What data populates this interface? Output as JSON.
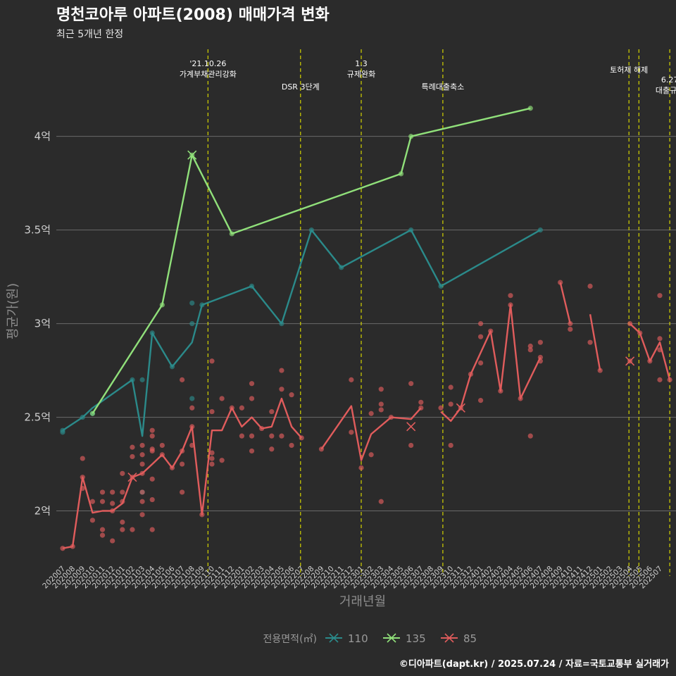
{
  "chart_data": {
    "type": "line",
    "title": "명천코아루 아파트(2008) 매매가격 변화",
    "subtitle": "최근 5개년 한정",
    "xlabel": "거래년월",
    "ylabel": "평균가(원)",
    "caption": "©디아파트(dapt.kr) / 2025.07.24 / 자료=국토교통부 실거래가",
    "ylim": [
      1.72,
      4.48
    ],
    "yticks": [
      {
        "v": 2,
        "label": "2억"
      },
      {
        "v": 2.5,
        "label": "2.5억"
      },
      {
        "v": 3,
        "label": "3억"
      },
      {
        "v": 3.5,
        "label": "3.5억"
      },
      {
        "v": 4,
        "label": "4억"
      }
    ],
    "months": [
      "202007",
      "202008",
      "202009",
      "202010",
      "202011",
      "202012",
      "202101",
      "202102",
      "202103",
      "202104",
      "202105",
      "202106",
      "202107",
      "202108",
      "202109",
      "202110",
      "202111",
      "202112",
      "202201",
      "202202",
      "202203",
      "202204",
      "202205",
      "202206",
      "202207",
      "202208",
      "202209",
      "202210",
      "202211",
      "202212",
      "202301",
      "202302",
      "202303",
      "202304",
      "202305",
      "202306",
      "202307",
      "202308",
      "202309",
      "202310",
      "202311",
      "202312",
      "202401",
      "202402",
      "202403",
      "202404",
      "202405",
      "202406",
      "202407",
      "202408",
      "202409",
      "202410",
      "202411",
      "202412",
      "202501",
      "202502",
      "202503",
      "202504",
      "202505",
      "202506",
      "202507"
    ],
    "legend": {
      "title": "전용면적(㎡)",
      "placement": "bottom"
    },
    "events": [
      {
        "x": 14.6,
        "lines": [
          "'21.10.26",
          "가계부채관리강화"
        ],
        "y": 94
      },
      {
        "x": 23.9,
        "lines": [
          "DSR 3단계"
        ],
        "y": 127
      },
      {
        "x": 30.0,
        "lines": [
          "1.3",
          "규제완화"
        ],
        "y": 94
      },
      {
        "x": 38.2,
        "lines": [
          "특례대출축소"
        ],
        "y": 127
      },
      {
        "x": 56.9,
        "lines": [
          "토허제 해제"
        ],
        "y": 103
      },
      {
        "x": 57.9,
        "lines": [],
        "y": 103
      },
      {
        "x": 61.0,
        "lines": [
          "6.27",
          "대출규제"
        ],
        "y": 117
      }
    ],
    "series": [
      {
        "name": "110",
        "color": "#2b8a8a",
        "line": [
          [
            0,
            2.43
          ],
          [
            2,
            2.5
          ],
          [
            3,
            2.55
          ],
          [
            7,
            2.7
          ],
          [
            8,
            2.4
          ],
          [
            9,
            2.95
          ],
          [
            11,
            2.77
          ],
          [
            13,
            2.9
          ],
          [
            14,
            3.1
          ],
          [
            19,
            3.2
          ],
          [
            22,
            3.0
          ],
          [
            25,
            3.5
          ],
          [
            28,
            3.3
          ],
          [
            35,
            3.5
          ],
          [
            38,
            3.2
          ],
          [
            48,
            3.5
          ]
        ],
        "points": [
          [
            0,
            2.42
          ],
          [
            0,
            2.43
          ],
          [
            2,
            2.5
          ],
          [
            3,
            2.52
          ],
          [
            7,
            2.7
          ],
          [
            8,
            2.7
          ],
          [
            8,
            2.1
          ],
          [
            9,
            2.95
          ],
          [
            11,
            2.77
          ],
          [
            13,
            3.11
          ],
          [
            13,
            3.0
          ],
          [
            13,
            2.6
          ],
          [
            14,
            3.1
          ],
          [
            19,
            3.2
          ],
          [
            22,
            3.0
          ],
          [
            25,
            3.5
          ],
          [
            28,
            3.3
          ],
          [
            35,
            3.5
          ],
          [
            38,
            3.2
          ],
          [
            48,
            3.5
          ]
        ],
        "crosses": []
      },
      {
        "name": "135",
        "color": "#90e07a",
        "line": [
          [
            3,
            2.52
          ],
          [
            10,
            3.1
          ],
          [
            13,
            3.9
          ],
          [
            17,
            3.48
          ],
          [
            34,
            3.8
          ],
          [
            35,
            4.0
          ],
          [
            47,
            4.15
          ]
        ],
        "points": [
          [
            3,
            2.52
          ],
          [
            10,
            3.1
          ],
          [
            13,
            3.9
          ],
          [
            17,
            3.48
          ],
          [
            34,
            3.8
          ],
          [
            35,
            4.0
          ],
          [
            47,
            4.15
          ]
        ],
        "crosses": [
          [
            13,
            3.9
          ]
        ]
      },
      {
        "name": "85",
        "color": "#e05c5c",
        "segments": [
          [
            [
              0,
              1.8
            ],
            [
              1,
              1.81
            ],
            [
              2,
              2.18
            ],
            [
              3,
              1.99
            ],
            [
              4,
              2.0
            ],
            [
              5,
              2.0
            ],
            [
              6,
              2.04
            ],
            [
              7,
              2.18
            ],
            [
              8,
              2.2
            ],
            [
              9,
              2.25
            ],
            [
              10,
              2.3
            ],
            [
              11,
              2.23
            ],
            [
              12,
              2.32
            ],
            [
              13,
              2.45
            ],
            [
              14,
              1.98
            ],
            [
              15,
              2.43
            ],
            [
              16,
              2.43
            ],
            [
              17,
              2.55
            ],
            [
              18,
              2.45
            ],
            [
              19,
              2.5
            ],
            [
              20,
              2.44
            ],
            [
              21,
              2.45
            ],
            [
              22,
              2.6
            ],
            [
              23,
              2.45
            ],
            [
              24,
              2.39
            ]
          ],
          [
            [
              26,
              2.33
            ],
            [
              29,
              2.56
            ],
            [
              30,
              2.27
            ],
            [
              31,
              2.41
            ],
            [
              33,
              2.5
            ],
            [
              35,
              2.49
            ],
            [
              36,
              2.55
            ]
          ],
          [
            [
              38,
              2.53
            ],
            [
              39,
              2.48
            ],
            [
              40,
              2.55
            ],
            [
              41,
              2.73
            ],
            [
              43,
              2.96
            ],
            [
              44,
              2.64
            ],
            [
              45,
              3.1
            ],
            [
              46,
              2.6
            ],
            [
              48,
              2.82
            ]
          ],
          [
            [
              50,
              3.22
            ],
            [
              51,
              3.0
            ]
          ],
          [
            [
              53,
              3.05
            ],
            [
              54,
              2.75
            ]
          ],
          [
            [
              57,
              3.0
            ],
            [
              58,
              2.95
            ],
            [
              59,
              2.8
            ],
            [
              60,
              2.9
            ],
            [
              61,
              2.7
            ]
          ]
        ],
        "points": [
          [
            0,
            1.8
          ],
          [
            1,
            1.81
          ],
          [
            2,
            2.28
          ],
          [
            2,
            2.18
          ],
          [
            2,
            2.12
          ],
          [
            3,
            2.05
          ],
          [
            3,
            1.95
          ],
          [
            4,
            2.1
          ],
          [
            4,
            2.05
          ],
          [
            4,
            1.9
          ],
          [
            4,
            1.87
          ],
          [
            5,
            2.1
          ],
          [
            5,
            2.04
          ],
          [
            5,
            2.0
          ],
          [
            5,
            1.84
          ],
          [
            6,
            2.2
          ],
          [
            6,
            2.1
          ],
          [
            6,
            2.05
          ],
          [
            6,
            1.94
          ],
          [
            6,
            1.9
          ],
          [
            7,
            2.34
          ],
          [
            7,
            2.29
          ],
          [
            7,
            2.18
          ],
          [
            7,
            1.9
          ],
          [
            8,
            2.35
          ],
          [
            8,
            2.3
          ],
          [
            8,
            2.25
          ],
          [
            8,
            2.2
          ],
          [
            8,
            2.1
          ],
          [
            8,
            2.05
          ],
          [
            8,
            1.98
          ],
          [
            9,
            2.43
          ],
          [
            9,
            2.4
          ],
          [
            9,
            2.32
          ],
          [
            9,
            2.33
          ],
          [
            9,
            2.17
          ],
          [
            9,
            2.06
          ],
          [
            9,
            1.9
          ],
          [
            10,
            2.35
          ],
          [
            10,
            2.3
          ],
          [
            11,
            2.23
          ],
          [
            12,
            2.7
          ],
          [
            12,
            2.32
          ],
          [
            12,
            2.25
          ],
          [
            12,
            2.1
          ],
          [
            13,
            2.45
          ],
          [
            13,
            2.55
          ],
          [
            13,
            2.35
          ],
          [
            14,
            1.98
          ],
          [
            15,
            2.8
          ],
          [
            15,
            2.53
          ],
          [
            15,
            2.31
          ],
          [
            15,
            2.28
          ],
          [
            15,
            2.25
          ],
          [
            16,
            2.6
          ],
          [
            16,
            2.27
          ],
          [
            17,
            2.55
          ],
          [
            18,
            2.55
          ],
          [
            18,
            2.4
          ],
          [
            19,
            2.68
          ],
          [
            19,
            2.6
          ],
          [
            19,
            2.4
          ],
          [
            19,
            2.32
          ],
          [
            20,
            2.44
          ],
          [
            21,
            2.53
          ],
          [
            21,
            2.4
          ],
          [
            21,
            2.33
          ],
          [
            22,
            2.75
          ],
          [
            22,
            2.65
          ],
          [
            22,
            2.4
          ],
          [
            23,
            2.62
          ],
          [
            23,
            2.35
          ],
          [
            24,
            2.39
          ],
          [
            26,
            2.33
          ],
          [
            29,
            2.7
          ],
          [
            29,
            2.42
          ],
          [
            30,
            2.23
          ],
          [
            31,
            2.52
          ],
          [
            31,
            2.3
          ],
          [
            32,
            2.65
          ],
          [
            32,
            2.57
          ],
          [
            32,
            2.54
          ],
          [
            32,
            2.05
          ],
          [
            33,
            2.5
          ],
          [
            35,
            2.68
          ],
          [
            35,
            2.35
          ],
          [
            36,
            2.58
          ],
          [
            36,
            2.55
          ],
          [
            38,
            2.55
          ],
          [
            39,
            2.66
          ],
          [
            39,
            2.57
          ],
          [
            39,
            2.35
          ],
          [
            40,
            2.55
          ],
          [
            41,
            2.73
          ],
          [
            42,
            3.0
          ],
          [
            42,
            2.93
          ],
          [
            42,
            2.79
          ],
          [
            42,
            2.59
          ],
          [
            43,
            2.96
          ],
          [
            44,
            2.64
          ],
          [
            45,
            3.15
          ],
          [
            45,
            3.1
          ],
          [
            46,
            2.6
          ],
          [
            47,
            2.88
          ],
          [
            47,
            2.86
          ],
          [
            47,
            2.4
          ],
          [
            48,
            2.9
          ],
          [
            48,
            2.82
          ],
          [
            48,
            2.8
          ],
          [
            50,
            3.22
          ],
          [
            51,
            3.0
          ],
          [
            51,
            2.97
          ],
          [
            53,
            3.2
          ],
          [
            53,
            2.9
          ],
          [
            54,
            2.75
          ],
          [
            57,
            3.0
          ],
          [
            57,
            2.8
          ],
          [
            58,
            2.95
          ],
          [
            59,
            2.8
          ],
          [
            60,
            3.15
          ],
          [
            60,
            2.92
          ],
          [
            60,
            2.86
          ],
          [
            60,
            2.7
          ],
          [
            61,
            2.7
          ]
        ],
        "crosses": [
          [
            7,
            2.18
          ],
          [
            35,
            2.45
          ],
          [
            40,
            2.55
          ],
          [
            57,
            2.8
          ]
        ]
      }
    ]
  }
}
